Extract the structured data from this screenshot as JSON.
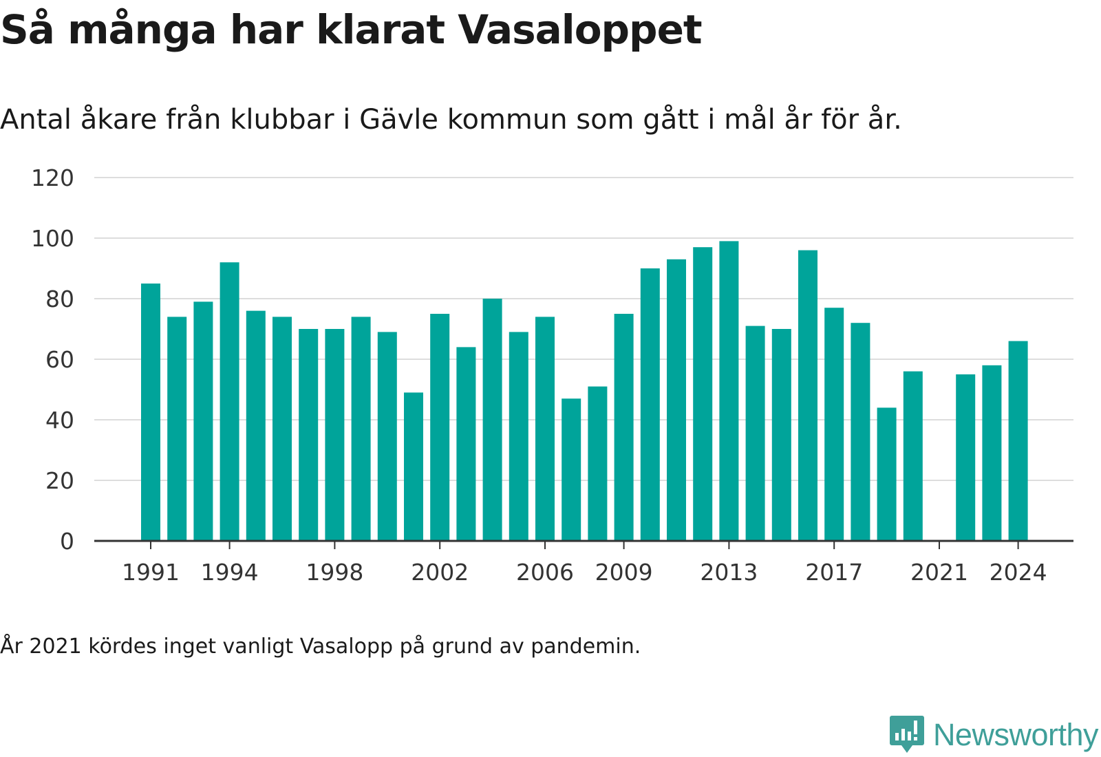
{
  "title": "Så många har klarat Vasaloppet",
  "subtitle": "Antal åkare från klubbar i Gävle kommun som gått i mål år för år.",
  "note": "År 2021 kördes inget vanligt Vasalopp på grund av pandemin.",
  "brand": {
    "name": "Newsworthy",
    "icon": "newsworthy-logo-icon",
    "color": "#3f9f99"
  },
  "colors": {
    "bar": "#00a49a",
    "grid": "#dddddd",
    "axis": "#333333"
  },
  "chart_data": {
    "type": "bar",
    "categories": [
      1991,
      1992,
      1993,
      1994,
      1995,
      1996,
      1997,
      1998,
      1999,
      2000,
      2001,
      2002,
      2003,
      2004,
      2005,
      2006,
      2007,
      2008,
      2009,
      2010,
      2011,
      2012,
      2013,
      2014,
      2015,
      2016,
      2017,
      2018,
      2019,
      2020,
      2021,
      2022,
      2023,
      2024
    ],
    "values": [
      85,
      74,
      79,
      92,
      76,
      74,
      70,
      70,
      74,
      69,
      49,
      75,
      64,
      80,
      69,
      74,
      47,
      51,
      75,
      90,
      93,
      97,
      99,
      71,
      70,
      96,
      77,
      72,
      44,
      56,
      null,
      55,
      58,
      66
    ],
    "x_tick_labels": [
      "1991",
      "1994",
      "1998",
      "2002",
      "2006",
      "2009",
      "2013",
      "2017",
      "2021",
      "2024"
    ],
    "y_ticks": [
      0,
      20,
      40,
      60,
      80,
      100,
      120
    ],
    "ylim": [
      0,
      120
    ],
    "grid": true,
    "legend": "none"
  }
}
